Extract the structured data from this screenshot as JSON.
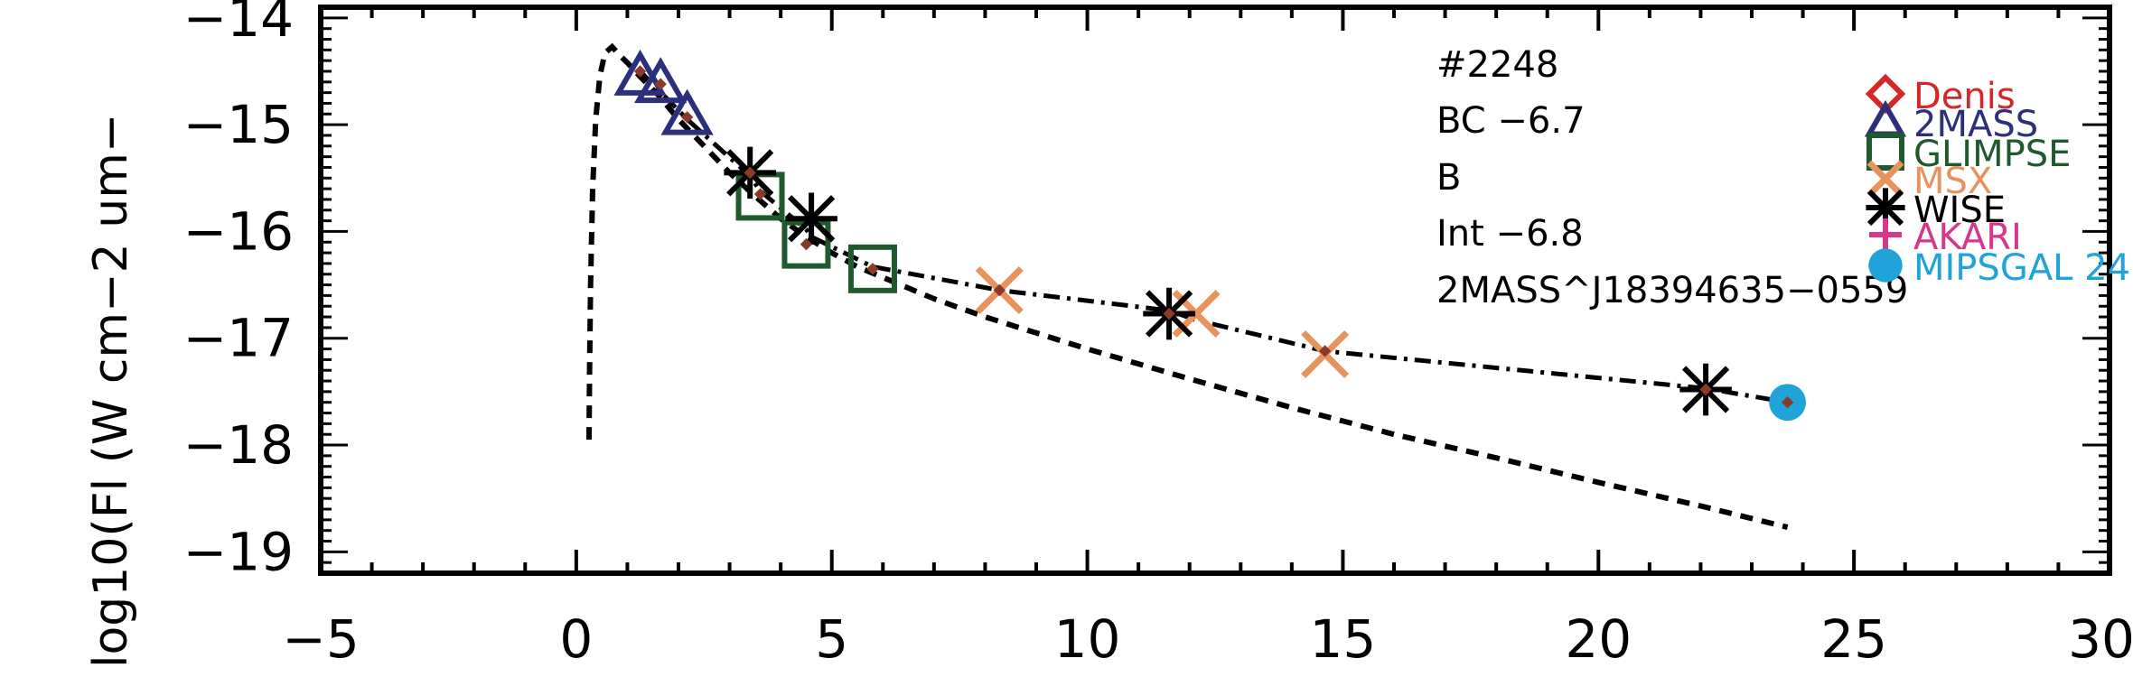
{
  "chart_data": {
    "type": "scatter",
    "ylabel": "log10(Fl (W cm−2 um−",
    "xlabel": "",
    "xlim": [
      -5,
      30
    ],
    "ylim": [
      -19.2,
      -13.9
    ],
    "x_ticks": [
      "−5",
      "0",
      "5",
      "10",
      "15",
      "20",
      "25",
      "30"
    ],
    "y_ticks": [
      "−14",
      "−15",
      "−16",
      "−17",
      "−18",
      "−19"
    ],
    "annotations": [
      "#2248",
      "BC  −6.7",
      "B",
      "Int  −6.8",
      "2MASS^J18394635−0559"
    ],
    "legend_position": "right",
    "legend": [
      {
        "name": "Denis",
        "marker": "diamond",
        "color": "#d62728"
      },
      {
        "name": "2MASS",
        "marker": "triangle",
        "color": "#2b2f7c"
      },
      {
        "name": "GLIMPSE",
        "marker": "square",
        "color": "#1f5a2e"
      },
      {
        "name": "MSX",
        "marker": "x",
        "color": "#e8925e"
      },
      {
        "name": "WISE",
        "marker": "asterisk",
        "color": "#000000"
      },
      {
        "name": "AKARI",
        "marker": "plus",
        "color": "#d6368c"
      },
      {
        "name": "MIPSGAL  24",
        "marker": "circle",
        "color": "#1fa3d8"
      }
    ],
    "series": [
      {
        "name": "2MASS",
        "marker": "triangle",
        "color": "#2b2f7c",
        "x": [
          1.25,
          1.65,
          2.17
        ],
        "y": [
          -14.55,
          -14.62,
          -14.92
        ]
      },
      {
        "name": "GLIMPSE",
        "marker": "square",
        "color": "#1f5a2e",
        "x": [
          3.6,
          4.5,
          5.8
        ],
        "y": [
          -15.67,
          -16.12,
          -16.35
        ]
      },
      {
        "name": "MSX",
        "marker": "x",
        "color": "#e8925e",
        "x": [
          8.28,
          12.13,
          14.65
        ],
        "y": [
          -16.55,
          -16.77,
          -17.15
        ]
      },
      {
        "name": "WISE",
        "marker": "asterisk",
        "color": "#000000",
        "x": [
          3.4,
          4.6,
          11.6,
          22.1
        ],
        "y": [
          -15.45,
          -15.88,
          -16.77,
          -17.48
        ]
      },
      {
        "name": "MIPSGAL  24",
        "marker": "circle",
        "color": "#1fa3d8",
        "x": [
          23.7
        ],
        "y": [
          -17.6
        ]
      }
    ],
    "dust_fit_line": {
      "style": "dash-dot",
      "color": "#000000",
      "x": [
        1.25,
        2.17,
        3.4,
        3.6,
        4.5,
        4.6,
        5.8,
        8.28,
        11.6,
        12.13,
        14.65,
        22.1,
        23.7
      ],
      "y": [
        -14.5,
        -14.95,
        -15.48,
        -15.62,
        -15.98,
        -16.05,
        -16.33,
        -16.55,
        -16.74,
        -16.83,
        -17.12,
        -17.47,
        -17.6
      ]
    },
    "photosphere_line": {
      "style": "dashed",
      "color": "#000000",
      "x": [
        0.25,
        0.26,
        0.28,
        0.32,
        0.38,
        0.46,
        0.56,
        0.7,
        0.85,
        1.0,
        1.25,
        1.6,
        2.0,
        2.5,
        3.0,
        3.5,
        4.0,
        4.5,
        5.0,
        5.5,
        6.0,
        7.0,
        8.0,
        9.0,
        10.0,
        12.0,
        14.0,
        16.0,
        18.0,
        20.0,
        22.0,
        23.7
      ],
      "y": [
        -17.95,
        -17.3,
        -16.5,
        -15.6,
        -14.95,
        -14.55,
        -14.33,
        -14.27,
        -14.35,
        -14.42,
        -14.55,
        -14.72,
        -14.95,
        -15.2,
        -15.45,
        -15.67,
        -15.88,
        -16.05,
        -16.2,
        -16.33,
        -16.43,
        -16.63,
        -16.8,
        -16.95,
        -17.1,
        -17.38,
        -17.65,
        -17.9,
        -18.12,
        -18.35,
        -18.57,
        -18.77
      ]
    },
    "fit_points": {
      "color": "#8b3a2a",
      "x": [
        1.25,
        1.65,
        2.17,
        3.4,
        3.6,
        4.5,
        5.8,
        8.28,
        11.6,
        14.65,
        22.1,
        23.7
      ],
      "y": [
        -14.5,
        -14.62,
        -14.93,
        -15.45,
        -15.65,
        -16.12,
        -16.35,
        -16.55,
        -16.77,
        -17.12,
        -17.48,
        -17.6
      ]
    }
  }
}
